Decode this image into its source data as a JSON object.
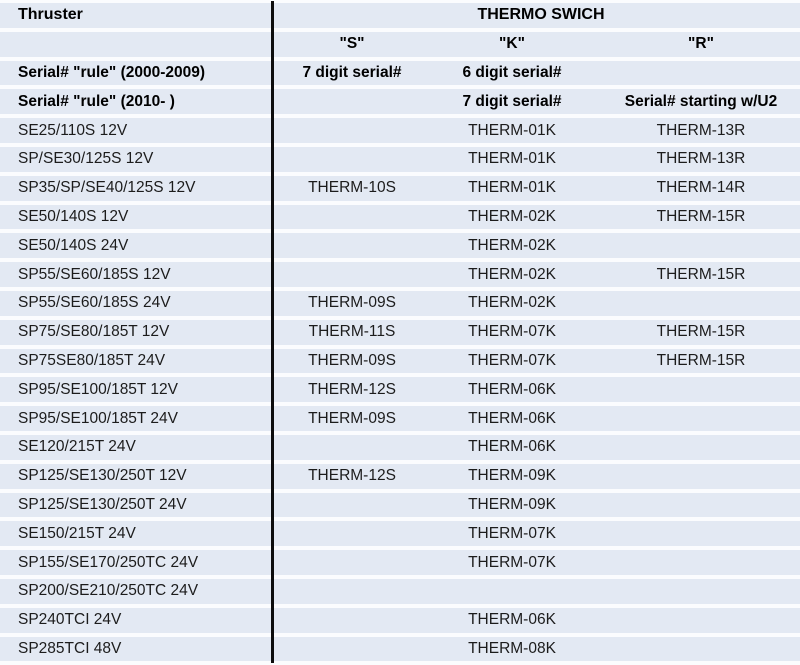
{
  "colors": {
    "band": "#e3e9f3",
    "gap": "#fbfcfe",
    "text": "#1c1c1c",
    "bold_text": "#000000",
    "divider": "#0d0d0d"
  },
  "table": {
    "header": {
      "thruster_label": "Thruster",
      "group_title": "THERMO SWICH"
    },
    "subheader": {
      "s": "\"S\"",
      "k": "\"K\"",
      "r": "\"R\""
    },
    "rules": [
      {
        "label": "Serial# \"rule\" (2000-2009)",
        "s": "7 digit serial#",
        "k": "6 digit serial#",
        "r": ""
      },
      {
        "label": "Serial# \"rule\" (2010- )",
        "s": "",
        "k": "7 digit serial#",
        "r": "Serial# starting w/U2"
      }
    ],
    "rows": [
      {
        "label": "SE25/110S 12V",
        "s": "",
        "k": "THERM-01K",
        "r": "THERM-13R"
      },
      {
        "label": "SP/SE30/125S 12V",
        "s": "",
        "k": "THERM-01K",
        "r": "THERM-13R"
      },
      {
        "label": "SP35/SP/SE40/125S 12V",
        "s": "THERM-10S",
        "k": "THERM-01K",
        "r": "THERM-14R"
      },
      {
        "label": "SE50/140S 12V",
        "s": "",
        "k": "THERM-02K",
        "r": "THERM-15R"
      },
      {
        "label": "SE50/140S 24V",
        "s": "",
        "k": "THERM-02K",
        "r": ""
      },
      {
        "label": "SP55/SE60/185S 12V",
        "s": "",
        "k": "THERM-02K",
        "r": "THERM-15R"
      },
      {
        "label": "SP55/SE60/185S 24V",
        "s": "THERM-09S",
        "k": "THERM-02K",
        "r": ""
      },
      {
        "label": "SP75/SE80/185T 12V",
        "s": "THERM-11S",
        "k": "THERM-07K",
        "r": "THERM-15R"
      },
      {
        "label": "SP75SE80/185T 24V",
        "s": "THERM-09S",
        "k": "THERM-07K",
        "r": "THERM-15R"
      },
      {
        "label": "SP95/SE100/185T 12V",
        "s": "THERM-12S",
        "k": "THERM-06K",
        "r": ""
      },
      {
        "label": "SP95/SE100/185T 24V",
        "s": "THERM-09S",
        "k": "THERM-06K",
        "r": ""
      },
      {
        "label": "SE120/215T 24V",
        "s": "",
        "k": "THERM-06K",
        "r": ""
      },
      {
        "label": "SP125/SE130/250T 12V",
        "s": "THERM-12S",
        "k": "THERM-09K",
        "r": ""
      },
      {
        "label": "SP125/SE130/250T 24V",
        "s": "",
        "k": "THERM-09K",
        "r": ""
      },
      {
        "label": "SE150/215T 24V",
        "s": "",
        "k": "THERM-07K",
        "r": ""
      },
      {
        "label": "SP155/SE170/250TC 24V",
        "s": "",
        "k": "THERM-07K",
        "r": ""
      },
      {
        "label": "SP200/SE210/250TC 24V",
        "s": "",
        "k": "",
        "r": ""
      },
      {
        "label": "SP240TCI 24V",
        "s": "",
        "k": "THERM-06K",
        "r": ""
      },
      {
        "label": "SP285TCI 48V",
        "s": "",
        "k": "THERM-08K",
        "r": ""
      }
    ]
  }
}
